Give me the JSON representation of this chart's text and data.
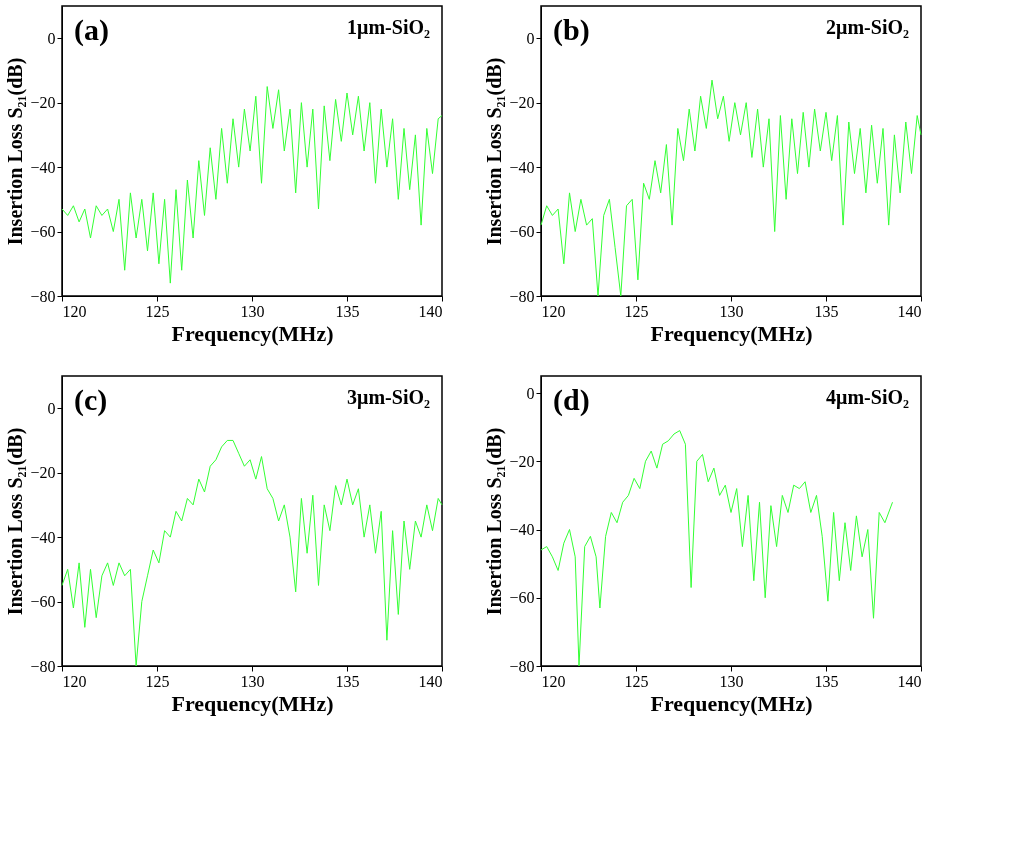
{
  "chart_data": [
    {
      "type": "line",
      "xlabel": "Frequency(MHz)",
      "ylabel": "Insertion Loss S₂₁(dB)",
      "annotations": [
        "(a)",
        "1μm-SiO₂"
      ],
      "xlim": [
        120,
        140
      ],
      "xticks": [
        120,
        125,
        130,
        135,
        140
      ],
      "ylim": [
        -80,
        10
      ],
      "yticks": [
        -80,
        -60,
        -40,
        -20,
        0
      ],
      "grid": false,
      "x": [
        120,
        120.3,
        120.6,
        120.9,
        121.2,
        121.5,
        121.8,
        122.1,
        122.4,
        122.7,
        123,
        123.3,
        123.6,
        123.9,
        124.2,
        124.5,
        124.8,
        125.1,
        125.4,
        125.7,
        126,
        126.3,
        126.6,
        126.9,
        127.2,
        127.5,
        127.8,
        128.1,
        128.4,
        128.7,
        129,
        129.3,
        129.6,
        129.9,
        130.2,
        130.5,
        130.8,
        131.1,
        131.4,
        131.7,
        132,
        132.3,
        132.6,
        132.9,
        133.2,
        133.5,
        133.8,
        134.1,
        134.4,
        134.7,
        135,
        135.3,
        135.6,
        135.9,
        136.2,
        136.5,
        136.8,
        137.1,
        137.4,
        137.7,
        138,
        138.3,
        138.6,
        138.9,
        139.2,
        139.5,
        139.8,
        140
      ],
      "series": [
        {
          "color": "#33ff33",
          "values": [
            -53,
            -55,
            -52,
            -57,
            -53,
            -62,
            -52,
            -55,
            -53,
            -60,
            -50,
            -72,
            -48,
            -62,
            -50,
            -66,
            -48,
            -70,
            -50,
            -76,
            -47,
            -72,
            -44,
            -62,
            -38,
            -55,
            -34,
            -50,
            -28,
            -45,
            -25,
            -40,
            -22,
            -35,
            -18,
            -45,
            -15,
            -28,
            -16,
            -35,
            -22,
            -48,
            -20,
            -40,
            -22,
            -53,
            -21,
            -38,
            -19,
            -32,
            -17,
            -30,
            -18,
            -35,
            -20,
            -45,
            -22,
            -40,
            -25,
            -50,
            -28,
            -47,
            -30,
            -58,
            -28,
            -42,
            -25,
            -24
          ]
        }
      ]
    },
    {
      "type": "line",
      "xlabel": "Frequency(MHz)",
      "ylabel": "Insertion Loss S₂₁(dB)",
      "annotations": [
        "(b)",
        "2μm-SiO₂"
      ],
      "xlim": [
        120,
        140
      ],
      "xticks": [
        120,
        125,
        130,
        135,
        140
      ],
      "ylim": [
        -80,
        10
      ],
      "yticks": [
        -80,
        -60,
        -40,
        -20,
        0
      ],
      "grid": false,
      "x": [
        120,
        120.3,
        120.6,
        120.9,
        121.2,
        121.5,
        121.8,
        122.1,
        122.4,
        122.7,
        123,
        123.3,
        123.6,
        123.9,
        124.2,
        124.5,
        124.8,
        125.1,
        125.4,
        125.7,
        126,
        126.3,
        126.6,
        126.9,
        127.2,
        127.5,
        127.8,
        128.1,
        128.4,
        128.7,
        129,
        129.3,
        129.6,
        129.9,
        130.2,
        130.5,
        130.8,
        131.1,
        131.4,
        131.7,
        132,
        132.3,
        132.6,
        132.9,
        133.2,
        133.5,
        133.8,
        134.1,
        134.4,
        134.7,
        135,
        135.3,
        135.6,
        135.9,
        136.2,
        136.5,
        136.8,
        137.1,
        137.4,
        137.7,
        138,
        138.3,
        138.6,
        138.9,
        139.2,
        139.5,
        139.8,
        140
      ],
      "series": [
        {
          "color": "#33ff33",
          "values": [
            -58,
            -52,
            -55,
            -53,
            -70,
            -48,
            -60,
            -50,
            -58,
            -56,
            -80,
            -55,
            -50,
            -65,
            -80,
            -52,
            -50,
            -75,
            -45,
            -50,
            -38,
            -48,
            -33,
            -58,
            -28,
            -38,
            -22,
            -35,
            -18,
            -28,
            -13,
            -25,
            -18,
            -32,
            -20,
            -30,
            -20,
            -37,
            -22,
            -40,
            -25,
            -60,
            -24,
            -50,
            -25,
            -42,
            -23,
            -40,
            -22,
            -35,
            -23,
            -38,
            -24,
            -58,
            -26,
            -42,
            -28,
            -48,
            -27,
            -45,
            -28,
            -58,
            -30,
            -48,
            -26,
            -42,
            -24,
            -30
          ]
        }
      ]
    },
    {
      "type": "line",
      "xlabel": "Frequency(MHz)",
      "ylabel": "Insertion Loss S₂₁(dB)",
      "annotations": [
        "(c)",
        "3μm-SiO₂"
      ],
      "xlim": [
        120,
        140
      ],
      "xticks": [
        120,
        125,
        130,
        135,
        140
      ],
      "ylim": [
        -80,
        10
      ],
      "yticks": [
        -80,
        -60,
        -40,
        -20,
        0
      ],
      "grid": false,
      "x": [
        120,
        120.3,
        120.6,
        120.9,
        121.2,
        121.5,
        121.8,
        122.1,
        122.4,
        122.7,
        123,
        123.3,
        123.6,
        123.9,
        124.2,
        124.5,
        124.8,
        125.1,
        125.4,
        125.7,
        126,
        126.3,
        126.6,
        126.9,
        127.2,
        127.5,
        127.8,
        128.1,
        128.4,
        128.7,
        129,
        129.3,
        129.6,
        129.9,
        130.2,
        130.5,
        130.8,
        131.1,
        131.4,
        131.7,
        132,
        132.3,
        132.6,
        132.9,
        133.2,
        133.5,
        133.8,
        134.1,
        134.4,
        134.7,
        135,
        135.3,
        135.6,
        135.9,
        136.2,
        136.5,
        136.8,
        137.1,
        137.4,
        137.7,
        138,
        138.3,
        138.6,
        138.9,
        139.2,
        139.5,
        139.8,
        140
      ],
      "series": [
        {
          "color": "#33ff33",
          "values": [
            -55,
            -50,
            -62,
            -48,
            -68,
            -50,
            -65,
            -52,
            -48,
            -55,
            -48,
            -52,
            -50,
            -80,
            -60,
            -52,
            -44,
            -48,
            -38,
            -40,
            -32,
            -35,
            -28,
            -30,
            -22,
            -26,
            -18,
            -16,
            -12,
            -10,
            -10,
            -14,
            -18,
            -16,
            -22,
            -15,
            -25,
            -28,
            -35,
            -30,
            -40,
            -57,
            -28,
            -45,
            -27,
            -55,
            -30,
            -38,
            -24,
            -30,
            -22,
            -30,
            -25,
            -40,
            -30,
            -45,
            -32,
            -72,
            -38,
            -64,
            -35,
            -50,
            -35,
            -40,
            -30,
            -38,
            -28,
            -30
          ]
        }
      ]
    },
    {
      "type": "line",
      "xlabel": "Frequency(MHz)",
      "ylabel": "Insertion Loss S₂₁(dB)",
      "annotations": [
        "(d)",
        "4μm-SiO₂"
      ],
      "xlim": [
        120,
        140
      ],
      "xticks": [
        120,
        125,
        130,
        135,
        140
      ],
      "ylim": [
        -80,
        5
      ],
      "yticks": [
        -80,
        -60,
        -40,
        -20,
        0
      ],
      "grid": false,
      "x": [
        120,
        120.3,
        120.6,
        120.9,
        121.2,
        121.5,
        121.8,
        122,
        122.3,
        122.6,
        122.9,
        123.1,
        123.4,
        123.7,
        124,
        124.3,
        124.6,
        124.9,
        125.2,
        125.5,
        125.8,
        126.1,
        126.4,
        126.7,
        127,
        127.3,
        127.6,
        127.9,
        128.2,
        128.5,
        128.8,
        129.1,
        129.4,
        129.7,
        130,
        130.3,
        130.6,
        130.9,
        131.2,
        131.5,
        131.8,
        132.1,
        132.4,
        132.7,
        133,
        133.3,
        133.6,
        133.9,
        134.2,
        134.5,
        134.8,
        135.1,
        135.4,
        135.7,
        136,
        136.3,
        136.6,
        136.9,
        137.2,
        137.5,
        137.8,
        138.1,
        138.5
      ],
      "series": [
        {
          "color": "#33ff33",
          "values": [
            -46,
            -45,
            -48,
            -52,
            -44,
            -40,
            -48,
            -80,
            -45,
            -42,
            -48,
            -63,
            -42,
            -35,
            -38,
            -32,
            -30,
            -25,
            -28,
            -20,
            -17,
            -22,
            -15,
            -14,
            -12,
            -11,
            -15,
            -57,
            -20,
            -18,
            -26,
            -22,
            -30,
            -27,
            -35,
            -28,
            -45,
            -30,
            -55,
            -32,
            -60,
            -33,
            -45,
            -30,
            -35,
            -27,
            -28,
            -26,
            -35,
            -30,
            -42,
            -61,
            -35,
            -55,
            -38,
            -52,
            -36,
            -48,
            -40,
            -66,
            -35,
            -38,
            -32
          ]
        }
      ]
    }
  ]
}
